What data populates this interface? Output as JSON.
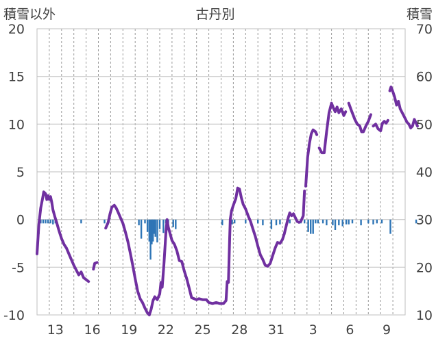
{
  "chart_data": {
    "type": "line",
    "title": "古丹別",
    "y_left_label": "積雪以外",
    "y_right_label": "積雪",
    "y_left": {
      "min": -10,
      "max": 20,
      "ticks": [
        "20",
        "15",
        "10",
        "5",
        "0",
        "-5",
        "-10"
      ]
    },
    "y_right": {
      "min": 10,
      "max": 70,
      "ticks": [
        "70",
        "60",
        "50",
        "40",
        "30",
        "20",
        "10"
      ]
    },
    "x_day_index_range": [
      0,
      30
    ],
    "x_ticks": [
      {
        "i": 1.5,
        "label": "13"
      },
      {
        "i": 4.5,
        "label": "16"
      },
      {
        "i": 7.5,
        "label": "19"
      },
      {
        "i": 10.5,
        "label": "22"
      },
      {
        "i": 13.5,
        "label": "25"
      },
      {
        "i": 16.5,
        "label": "28"
      },
      {
        "i": 19.5,
        "label": "31"
      },
      {
        "i": 22.5,
        "label": "3"
      },
      {
        "i": 25.5,
        "label": "6"
      },
      {
        "i": 28.5,
        "label": "9"
      }
    ],
    "grid_days": 30,
    "grid": "vertical-dashed-daily, horizontal-solid-at-ticks",
    "line_color": "#7030a0",
    "bar_color": "#2e75b6",
    "series": [
      {
        "kind": "line-segments",
        "axis": "left",
        "segments": [
          [
            [
              0.0,
              -3.6
            ],
            [
              0.15,
              -0.5
            ],
            [
              0.3,
              1.2
            ],
            [
              0.45,
              2.2
            ],
            [
              0.55,
              2.9
            ],
            [
              0.7,
              2.7
            ],
            [
              0.8,
              2.1
            ],
            [
              0.9,
              2.5
            ],
            [
              1.0,
              2.1
            ],
            [
              1.1,
              2.4
            ],
            [
              1.2,
              1.8
            ],
            [
              1.3,
              1.0
            ],
            [
              1.45,
              0.3
            ],
            [
              1.6,
              -0.3
            ],
            [
              1.8,
              -1.2
            ],
            [
              2.0,
              -2.0
            ],
            [
              2.2,
              -2.6
            ],
            [
              2.4,
              -3.0
            ],
            [
              2.6,
              -3.6
            ],
            [
              2.8,
              -4.2
            ],
            [
              3.0,
              -4.8
            ],
            [
              3.2,
              -5.3
            ],
            [
              3.4,
              -5.8
            ],
            [
              3.6,
              -5.5
            ],
            [
              3.8,
              -6.1
            ],
            [
              4.0,
              -6.3
            ],
            [
              4.2,
              -6.5
            ]
          ],
          [
            [
              4.6,
              -5.2
            ],
            [
              4.7,
              -4.6
            ],
            [
              4.9,
              -4.5
            ]
          ],
          [
            [
              5.6,
              -0.9
            ],
            [
              5.8,
              -0.3
            ],
            [
              5.95,
              0.6
            ],
            [
              6.1,
              1.3
            ],
            [
              6.3,
              1.5
            ],
            [
              6.45,
              1.2
            ],
            [
              6.6,
              0.8
            ],
            [
              6.8,
              0.2
            ],
            [
              7.0,
              -0.4
            ],
            [
              7.2,
              -1.3
            ],
            [
              7.4,
              -2.3
            ],
            [
              7.6,
              -3.5
            ],
            [
              7.8,
              -4.8
            ],
            [
              8.0,
              -6.2
            ],
            [
              8.2,
              -7.5
            ],
            [
              8.4,
              -8.3
            ],
            [
              8.6,
              -8.7
            ],
            [
              8.8,
              -9.3
            ],
            [
              9.0,
              -9.8
            ],
            [
              9.15,
              -10.0
            ],
            [
              9.3,
              -9.4
            ],
            [
              9.45,
              -8.5
            ],
            [
              9.6,
              -8.1
            ],
            [
              9.8,
              -8.4
            ],
            [
              10.0,
              -7.8
            ],
            [
              10.1,
              -6.6
            ],
            [
              10.2,
              -7.1
            ],
            [
              10.35,
              -4.5
            ],
            [
              10.5,
              -1.5
            ],
            [
              10.6,
              0.0
            ],
            [
              10.7,
              -0.8
            ],
            [
              10.85,
              -1.5
            ],
            [
              11.0,
              -2.2
            ],
            [
              11.2,
              -2.6
            ],
            [
              11.4,
              -3.3
            ],
            [
              11.6,
              -4.3
            ],
            [
              11.8,
              -4.4
            ],
            [
              12.0,
              -5.4
            ],
            [
              12.2,
              -6.2
            ],
            [
              12.4,
              -7.2
            ],
            [
              12.6,
              -8.2
            ],
            [
              12.8,
              -8.3
            ],
            [
              13.0,
              -8.4
            ],
            [
              13.2,
              -8.3
            ],
            [
              13.5,
              -8.4
            ],
            [
              13.8,
              -8.4
            ],
            [
              14.0,
              -8.7
            ],
            [
              14.3,
              -8.8
            ],
            [
              14.6,
              -8.7
            ],
            [
              14.9,
              -8.8
            ],
            [
              15.2,
              -8.8
            ],
            [
              15.4,
              -8.5
            ],
            [
              15.5,
              -6.5
            ],
            [
              15.6,
              -6.6
            ],
            [
              15.7,
              -2.0
            ],
            [
              15.75,
              0.0
            ],
            [
              15.85,
              0.9
            ],
            [
              16.0,
              1.5
            ],
            [
              16.2,
              2.2
            ],
            [
              16.35,
              3.3
            ],
            [
              16.5,
              3.2
            ],
            [
              16.65,
              2.3
            ],
            [
              16.8,
              1.6
            ],
            [
              17.0,
              1.1
            ],
            [
              17.2,
              0.4
            ],
            [
              17.4,
              -0.2
            ],
            [
              17.6,
              -1.0
            ],
            [
              17.8,
              -1.8
            ],
            [
              18.0,
              -2.8
            ],
            [
              18.2,
              -3.7
            ],
            [
              18.4,
              -4.2
            ],
            [
              18.6,
              -4.8
            ],
            [
              18.8,
              -4.9
            ],
            [
              19.0,
              -4.6
            ],
            [
              19.2,
              -3.8
            ],
            [
              19.4,
              -3.0
            ],
            [
              19.6,
              -2.4
            ],
            [
              19.8,
              -2.5
            ],
            [
              20.0,
              -2.1
            ],
            [
              20.15,
              -1.5
            ],
            [
              20.3,
              -0.7
            ],
            [
              20.45,
              0.1
            ],
            [
              20.6,
              0.7
            ],
            [
              20.75,
              0.4
            ],
            [
              20.9,
              0.6
            ],
            [
              21.05,
              0.2
            ],
            [
              21.2,
              -0.2
            ],
            [
              21.35,
              -0.3
            ]
          ],
          [
            [
              21.5,
              -0.2
            ],
            [
              21.7,
              0.4
            ],
            [
              21.8,
              3.0
            ]
          ],
          [
            [
              21.9,
              3.5
            ],
            [
              22.05,
              6.5
            ],
            [
              22.2,
              8.0
            ],
            [
              22.35,
              9.0
            ],
            [
              22.5,
              9.4
            ],
            [
              22.7,
              9.2
            ],
            [
              22.8,
              8.9
            ]
          ],
          [
            [
              23.0,
              7.5
            ],
            [
              23.2,
              7.0
            ],
            [
              23.4,
              7.0
            ],
            [
              23.6,
              9.2
            ],
            [
              23.8,
              11.2
            ],
            [
              24.0,
              12.2
            ],
            [
              24.15,
              11.7
            ],
            [
              24.3,
              11.3
            ],
            [
              24.45,
              11.8
            ],
            [
              24.6,
              11.2
            ],
            [
              24.8,
              11.6
            ],
            [
              25.0,
              10.9
            ],
            [
              25.15,
              11.3
            ]
          ],
          [
            [
              25.4,
              12.2
            ],
            [
              25.6,
              11.5
            ],
            [
              25.75,
              11.0
            ],
            [
              25.9,
              10.5
            ],
            [
              26.1,
              10.0
            ],
            [
              26.3,
              9.8
            ],
            [
              26.45,
              9.2
            ],
            [
              26.6,
              9.2
            ],
            [
              26.8,
              9.8
            ],
            [
              27.0,
              10.3
            ],
            [
              27.2,
              11.0
            ]
          ],
          [
            [
              27.4,
              9.8
            ],
            [
              27.6,
              10.0
            ],
            [
              27.8,
              9.5
            ],
            [
              28.0,
              9.3
            ],
            [
              28.15,
              10.1
            ],
            [
              28.3,
              10.3
            ],
            [
              28.45,
              10.1
            ],
            [
              28.6,
              10.4
            ]
          ],
          [
            [
              28.75,
              13.5
            ],
            [
              28.85,
              13.9
            ],
            [
              29.0,
              13.4
            ],
            [
              29.15,
              12.8
            ],
            [
              29.3,
              12.0
            ],
            [
              29.45,
              12.4
            ],
            [
              29.6,
              11.6
            ],
            [
              29.8,
              11.1
            ],
            [
              30.0,
              10.6
            ],
            [
              30.15,
              10.2
            ],
            [
              30.3,
              10.0
            ],
            [
              30.45,
              9.6
            ],
            [
              30.6,
              9.8
            ],
            [
              30.75,
              10.5
            ],
            [
              30.9,
              10.1
            ],
            [
              31.0,
              9.8
            ]
          ]
        ]
      },
      {
        "kind": "bars",
        "axis": "left",
        "points": [
          [
            0.15,
            -1.5
          ],
          [
            0.3,
            -0.4
          ],
          [
            0.5,
            -0.4
          ],
          [
            0.7,
            -0.4
          ],
          [
            0.9,
            -0.4
          ],
          [
            1.1,
            -0.4
          ],
          [
            1.3,
            -0.5
          ],
          [
            1.5,
            -0.4
          ],
          [
            3.6,
            -0.4
          ],
          [
            5.5,
            -0.4
          ],
          [
            5.8,
            -0.5
          ],
          [
            8.3,
            -0.6
          ],
          [
            8.5,
            -2.0
          ],
          [
            8.8,
            -0.4
          ],
          [
            9.0,
            -1.3
          ],
          [
            9.15,
            -2.3
          ],
          [
            9.25,
            -4.2
          ],
          [
            9.35,
            -2.6
          ],
          [
            9.45,
            -2.3
          ],
          [
            9.55,
            -1.5
          ],
          [
            9.65,
            -1.8
          ],
          [
            9.8,
            -2.4
          ],
          [
            10.0,
            -1.0
          ],
          [
            10.3,
            -1.4
          ],
          [
            10.5,
            -0.4
          ],
          [
            10.7,
            -0.4
          ],
          [
            11.1,
            -0.8
          ],
          [
            11.3,
            -1.0
          ],
          [
            15.1,
            -0.6
          ],
          [
            15.9,
            -0.5
          ],
          [
            16.1,
            -0.4
          ],
          [
            17.0,
            -0.4
          ],
          [
            18.0,
            -0.4
          ],
          [
            18.4,
            -0.6
          ],
          [
            19.1,
            -1.0
          ],
          [
            19.5,
            -0.6
          ],
          [
            19.8,
            -0.5
          ],
          [
            20.6,
            -0.4
          ],
          [
            21.5,
            -0.4
          ],
          [
            21.8,
            -0.4
          ],
          [
            22.1,
            -1.3
          ],
          [
            22.3,
            -1.5
          ],
          [
            22.5,
            -1.5
          ],
          [
            22.7,
            -0.4
          ],
          [
            22.9,
            -0.4
          ],
          [
            23.3,
            -0.4
          ],
          [
            23.6,
            -0.6
          ],
          [
            24.1,
            -0.6
          ],
          [
            24.3,
            -1.1
          ],
          [
            24.6,
            -0.6
          ],
          [
            24.9,
            -0.7
          ],
          [
            25.2,
            -0.5
          ],
          [
            25.4,
            -0.5
          ],
          [
            25.7,
            -0.4
          ],
          [
            26.4,
            -0.6
          ],
          [
            27.0,
            -0.4
          ],
          [
            27.4,
            -0.5
          ],
          [
            27.7,
            -0.4
          ],
          [
            28.1,
            -0.4
          ],
          [
            28.8,
            -1.5
          ],
          [
            30.9,
            -0.4
          ]
        ]
      }
    ]
  }
}
